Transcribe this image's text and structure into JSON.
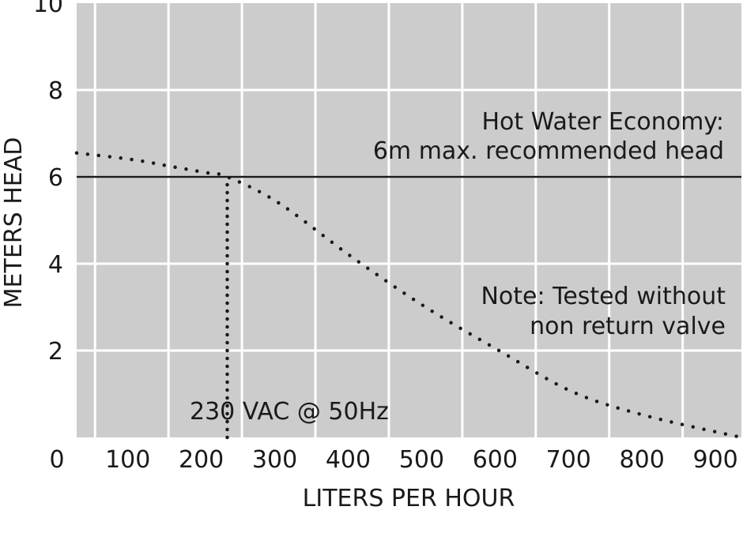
{
  "chart_data": {
    "type": "line",
    "xlabel": "LITERS PER HOUR",
    "ylabel": "METERS HEAD",
    "xlim": [
      25,
      930
    ],
    "ylim": [
      0,
      10
    ],
    "x_ticks": [
      {
        "value": 100,
        "label": "100"
      },
      {
        "value": 200,
        "label": "200"
      },
      {
        "value": 300,
        "label": "300"
      },
      {
        "value": 400,
        "label": "400"
      },
      {
        "value": 500,
        "label": "500"
      },
      {
        "value": 600,
        "label": "600"
      },
      {
        "value": 700,
        "label": "700"
      },
      {
        "value": 800,
        "label": "800"
      },
      {
        "value": 900,
        "label": "900"
      }
    ],
    "y_ticks": [
      {
        "value": 2,
        "label": "2"
      },
      {
        "value": 4,
        "label": "4"
      },
      {
        "value": 6,
        "label": "6"
      },
      {
        "value": 8,
        "label": "8"
      },
      {
        "value": 10,
        "label": "10"
      }
    ],
    "origin_label": "0",
    "grid": true,
    "series": [
      {
        "style": "dotted",
        "x": [
          25,
          100,
          150,
          200,
          230,
          300,
          400,
          500,
          600,
          700,
          800,
          930
        ],
        "y": [
          6.55,
          6.4,
          6.25,
          6.1,
          6.0,
          5.4,
          4.15,
          3.0,
          2.0,
          1.05,
          0.5,
          0.0
        ]
      }
    ],
    "reference_lines": [
      {
        "orientation": "horizontal",
        "style": "solid",
        "value": 6
      },
      {
        "orientation": "vertical",
        "style": "dotted",
        "value": 230,
        "from": 0,
        "to": 6
      }
    ],
    "annotations": [
      {
        "id": "hot-water",
        "lines": [
          "Hot Water Economy:",
          "6m max. recommended head"
        ]
      },
      {
        "id": "note",
        "lines": [
          "Note: Tested without",
          "non return valve"
        ]
      },
      {
        "id": "voltage",
        "lines": [
          "230 VAC @ 50Hz"
        ]
      }
    ],
    "colors": {
      "plot_background": "#cccccc",
      "grid": "#ffffff",
      "series": "#1a1a1a",
      "reference": "#1a1a1a",
      "text": "#1a1a1a"
    }
  }
}
